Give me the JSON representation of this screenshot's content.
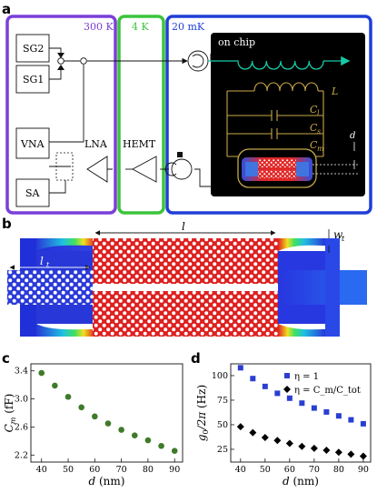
{
  "panels": {
    "a": "a",
    "b": "b",
    "c": "c",
    "d": "d"
  },
  "schematic": {
    "temp_300k": "300 K",
    "temp_4k": "4 K",
    "temp_20mk": "20 mK",
    "on_chip": "on chip",
    "sg2": "SG2",
    "sg1": "SG1",
    "vna": "VNA",
    "sa": "SA",
    "lna": "LNA",
    "hemt": "HEMT",
    "label_L": "L",
    "label_Cl": "C",
    "label_Cl_sub": "l",
    "label_Cs": "C",
    "label_Cs_sub": "s",
    "label_Cm": "C",
    "label_Cm_sub": "m",
    "label_d": "d"
  },
  "membrane": {
    "label_l": "l",
    "label_lt": "l",
    "label_lt_sub": "t",
    "label_wt": "w",
    "label_wt_sub": "t"
  },
  "colors": {
    "purple": "#7a3fd8",
    "green": "#3cc43c",
    "blue": "#1f3fd6",
    "teal": "#18c8a6",
    "gold": "#c8a84a",
    "marker_c": "#3f7a2a",
    "marker_d_sq": "#2a3fd0",
    "marker_d_dia": "#000000"
  },
  "chart_data": [
    {
      "type": "scatter",
      "panel": "c",
      "xlabel": "d (nm)",
      "ylabel": "C_m (fF)",
      "xlim": [
        36,
        93
      ],
      "ylim": [
        2.1,
        3.5
      ],
      "xticks": [
        "40",
        "50",
        "60",
        "70",
        "80",
        "90"
      ],
      "yticks": [
        "2.2",
        "2.6",
        "3.0",
        "3.4"
      ],
      "x": [
        40,
        45,
        50,
        55,
        60,
        65,
        70,
        75,
        80,
        85,
        90
      ],
      "values": [
        3.37,
        3.19,
        3.03,
        2.88,
        2.75,
        2.65,
        2.56,
        2.48,
        2.41,
        2.33,
        2.26
      ]
    },
    {
      "type": "scatter",
      "panel": "d",
      "xlabel": "d (nm)",
      "ylabel": "g_0/2π (Hz)",
      "xlim": [
        36,
        93
      ],
      "ylim": [
        12,
        112
      ],
      "xticks": [
        "40",
        "50",
        "60",
        "70",
        "80",
        "90"
      ],
      "yticks": [
        "25",
        "50",
        "75",
        "100"
      ],
      "x": [
        40,
        45,
        50,
        55,
        60,
        65,
        70,
        75,
        80,
        85,
        90
      ],
      "legend_position": "top-right",
      "series": [
        {
          "name": "η = 1",
          "marker": "square",
          "values": [
            108,
            97,
            89,
            82,
            77,
            72,
            67,
            63,
            59,
            55,
            51
          ]
        },
        {
          "name": "η = C_m/C_tot",
          "marker": "diamond",
          "values": [
            48,
            42,
            37,
            34,
            31,
            28,
            26,
            24,
            22,
            20,
            18
          ]
        }
      ]
    }
  ]
}
